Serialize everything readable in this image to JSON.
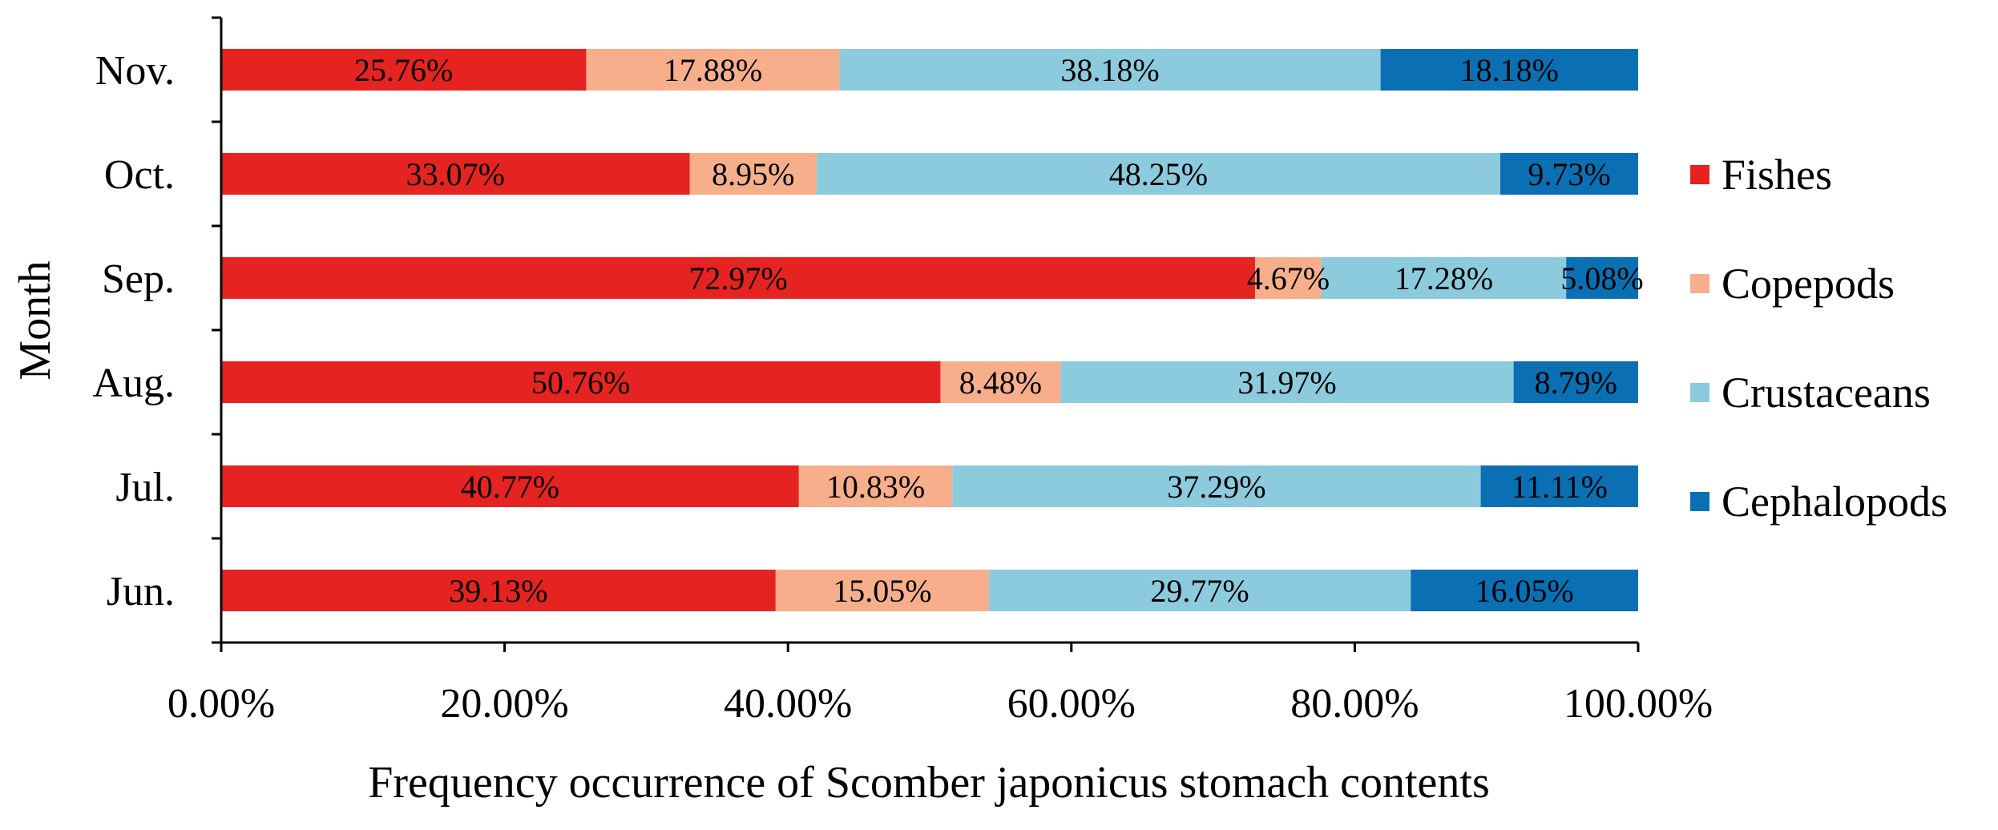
{
  "chart_data": {
    "type": "bar",
    "orientation": "horizontal",
    "stacked": true,
    "categories": [
      "Jun.",
      "Jul.",
      "Aug.",
      "Sep.",
      "Oct.",
      "Nov."
    ],
    "series": [
      {
        "name": "Fishes",
        "color": "#e52421",
        "values": [
          39.13,
          40.77,
          50.76,
          72.97,
          33.07,
          25.76
        ],
        "labels": [
          "39.13%",
          "40.77%",
          "50.76%",
          "72.97%",
          "33.07%",
          "25.76%"
        ]
      },
      {
        "name": "Copepods",
        "color": "#f7ae8b",
        "values": [
          15.05,
          10.83,
          8.48,
          4.67,
          8.95,
          17.88
        ],
        "labels": [
          "15.05%",
          "10.83%",
          "8.48%",
          "4.67%",
          "8.95%",
          "17.88%"
        ]
      },
      {
        "name": "Crustaceans",
        "color": "#8ccbdd",
        "values": [
          29.77,
          37.29,
          31.97,
          17.28,
          48.25,
          38.18
        ],
        "labels": [
          "29.77%",
          "37.29%",
          "31.97%",
          "17.28%",
          "48.25%",
          "38.18%"
        ]
      },
      {
        "name": "Cephalopods",
        "color": "#0a70b3",
        "values": [
          16.05,
          11.11,
          8.79,
          5.08,
          9.73,
          18.18
        ],
        "labels": [
          "16.05%",
          "11.11%",
          "8.79%",
          "5.08%",
          "9.73%",
          "18.18%"
        ]
      }
    ],
    "xlim": [
      0,
      100
    ],
    "xticks": [
      0,
      20,
      40,
      60,
      80,
      100
    ],
    "xtick_labels": [
      "0.00%",
      "20.00%",
      "40.00%",
      "60.00%",
      "80.00%",
      "100.00%"
    ],
    "xlabel": "Frequency  occurrence of Scomber japonicus stomach contents",
    "ylabel": "Month",
    "grid": false,
    "legend_position": "right"
  }
}
